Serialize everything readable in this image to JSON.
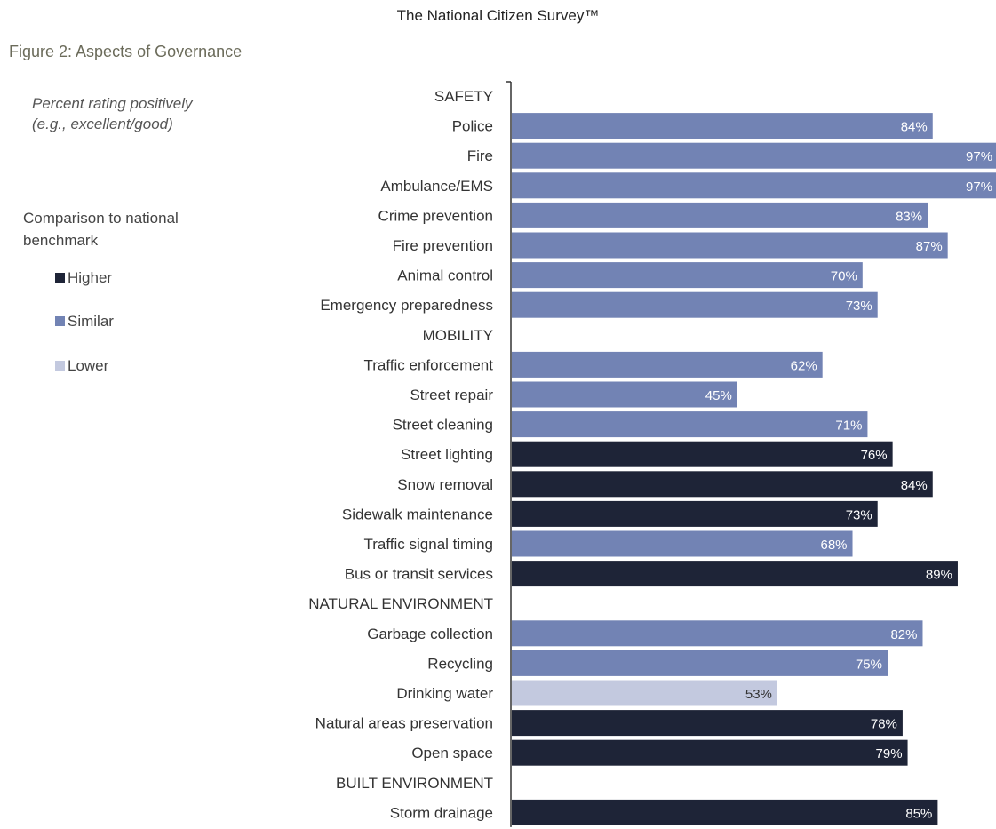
{
  "header": {
    "title": "The National Citizen Survey™"
  },
  "figure": {
    "caption": "Figure 2: Aspects of Governance",
    "measure_line1": "Percent rating positively",
    "measure_line2": "(e.g., excellent/good)"
  },
  "legend": {
    "title": "Comparison to national benchmark",
    "items": [
      {
        "label": "Higher",
        "color": "#1e2437"
      },
      {
        "label": "Similar",
        "color": "#7283b4"
      },
      {
        "label": "Lower",
        "color": "#c3c9df"
      }
    ]
  },
  "chart_data": {
    "type": "bar",
    "orientation": "horizontal",
    "value_suffix": "%",
    "xlim": [
      0,
      100
    ],
    "grid": false,
    "legend_position": "left",
    "colors": {
      "Higher": "#1e2437",
      "Similar": "#7283b4",
      "Lower": "#c3c9df"
    },
    "groups": [
      {
        "name": "SAFETY",
        "items": [
          {
            "label": "Police",
            "value": 84,
            "benchmark": "Similar"
          },
          {
            "label": "Fire",
            "value": 97,
            "benchmark": "Similar"
          },
          {
            "label": "Ambulance/EMS",
            "value": 97,
            "benchmark": "Similar"
          },
          {
            "label": "Crime prevention",
            "value": 83,
            "benchmark": "Similar"
          },
          {
            "label": "Fire prevention",
            "value": 87,
            "benchmark": "Similar"
          },
          {
            "label": "Animal control",
            "value": 70,
            "benchmark": "Similar"
          },
          {
            "label": "Emergency preparedness",
            "value": 73,
            "benchmark": "Similar"
          }
        ]
      },
      {
        "name": "MOBILITY",
        "items": [
          {
            "label": "Traffic enforcement",
            "value": 62,
            "benchmark": "Similar"
          },
          {
            "label": "Street repair",
            "value": 45,
            "benchmark": "Similar"
          },
          {
            "label": "Street cleaning",
            "value": 71,
            "benchmark": "Similar"
          },
          {
            "label": "Street lighting",
            "value": 76,
            "benchmark": "Higher"
          },
          {
            "label": "Snow removal",
            "value": 84,
            "benchmark": "Higher"
          },
          {
            "label": "Sidewalk maintenance",
            "value": 73,
            "benchmark": "Higher"
          },
          {
            "label": "Traffic signal timing",
            "value": 68,
            "benchmark": "Similar"
          },
          {
            "label": "Bus or transit services",
            "value": 89,
            "benchmark": "Higher"
          }
        ]
      },
      {
        "name": "NATURAL ENVIRONMENT",
        "items": [
          {
            "label": "Garbage collection",
            "value": 82,
            "benchmark": "Similar"
          },
          {
            "label": "Recycling",
            "value": 75,
            "benchmark": "Similar"
          },
          {
            "label": "Drinking water",
            "value": 53,
            "benchmark": "Lower"
          },
          {
            "label": "Natural areas preservation",
            "value": 78,
            "benchmark": "Higher"
          },
          {
            "label": "Open space",
            "value": 79,
            "benchmark": "Higher"
          }
        ]
      },
      {
        "name": "BUILT ENVIRONMENT",
        "items": [
          {
            "label": "Storm drainage",
            "value": 85,
            "benchmark": "Higher"
          }
        ]
      }
    ]
  }
}
